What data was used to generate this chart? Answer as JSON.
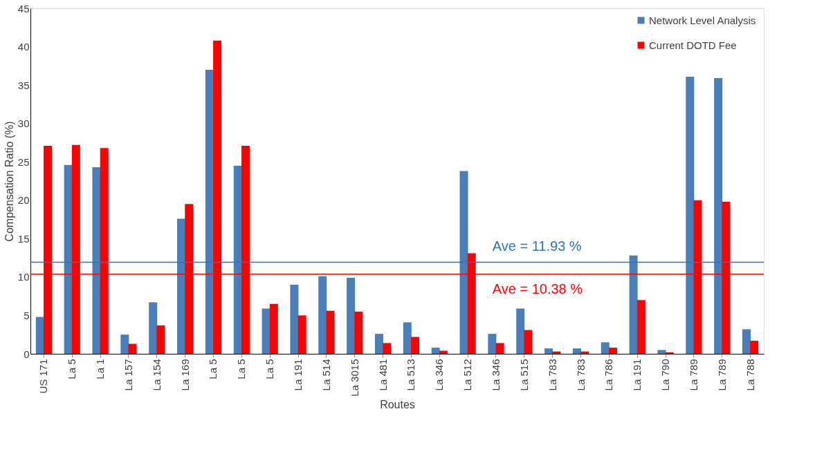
{
  "chart_data": {
    "type": "bar",
    "xlabel": "Routes",
    "ylabel": "Compensation Ratio (%)",
    "categories": [
      "US 171",
      "La 5",
      "La 1",
      "La 157",
      "La 154",
      "La 169",
      "La 5",
      "La 5",
      "La 5",
      "La 191",
      "La 514",
      "La 3015",
      "La 481",
      "La 513",
      "La 346",
      "La 512",
      "La 346",
      "La 515",
      "La 783",
      "La 783",
      "La 786",
      "La 191",
      "La 790",
      "La 789",
      "La 789",
      "La 788"
    ],
    "series": [
      {
        "name": "Network Level Analysis",
        "color": "#4a7ebb",
        "values": [
          4.8,
          24.6,
          24.3,
          2.5,
          6.7,
          17.6,
          37.0,
          24.5,
          5.9,
          9.0,
          10.1,
          9.9,
          2.6,
          4.1,
          0.8,
          23.8,
          2.6,
          5.9,
          0.7,
          0.7,
          1.5,
          12.8,
          0.5,
          36.1,
          35.9,
          3.2
        ]
      },
      {
        "name": "Current DOTD Fee",
        "color": "#ff0000",
        "values": [
          27.1,
          27.2,
          26.8,
          1.3,
          3.7,
          19.5,
          40.8,
          27.1,
          6.5,
          5.0,
          5.6,
          5.5,
          1.4,
          2.2,
          0.4,
          13.1,
          1.4,
          3.1,
          0.3,
          0.3,
          0.8,
          7.0,
          0.2,
          20.0,
          19.8,
          1.7
        ]
      }
    ],
    "ylim": [
      0,
      45
    ],
    "yticks": [
      0,
      5,
      10,
      15,
      20,
      25,
      30,
      35,
      40,
      45
    ],
    "ref_lines": [
      {
        "axis": "y",
        "value": 11.93,
        "label": "Ave = 11.93 %",
        "color": "#2e75b6"
      },
      {
        "axis": "y",
        "value": 10.38,
        "label": "Ave = 10.38 %",
        "color": "#ff0000"
      }
    ],
    "grid": false,
    "legend": "top right"
  }
}
